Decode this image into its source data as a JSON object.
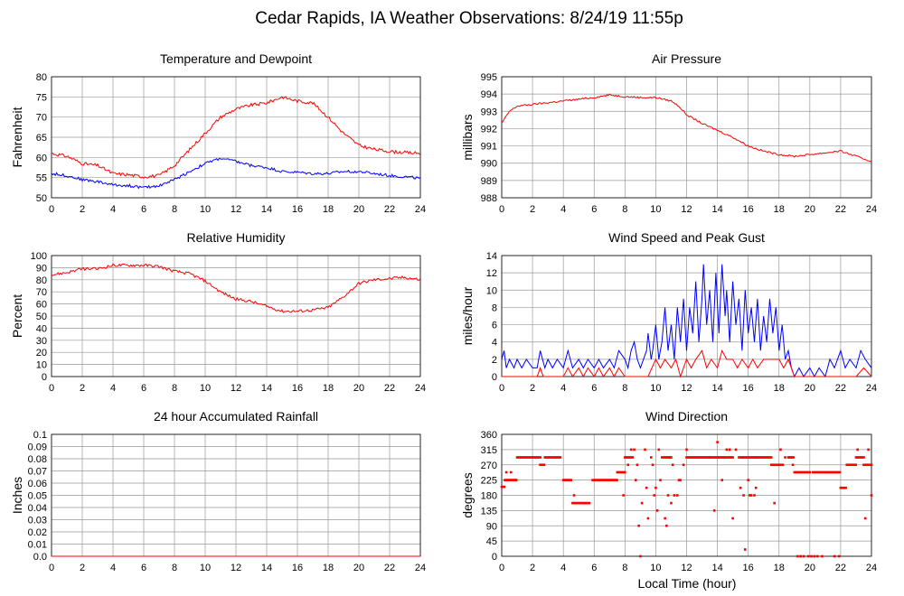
{
  "title": "Cedar Rapids, IA Weather Observations: 8/24/19 11:55p",
  "xlabel_shared": "Local Time (hour)",
  "colors": {
    "red": "#ff0000",
    "blue": "#0000ff",
    "grid": "#999999"
  },
  "chart_data": [
    {
      "id": "temp",
      "type": "line",
      "title": "Temperature and Dewpoint",
      "ylabel": "Fahrenheit",
      "xlim": [
        0,
        24
      ],
      "ylim": [
        50,
        80
      ],
      "grid": true,
      "xticks": [
        0,
        2,
        4,
        6,
        8,
        10,
        12,
        14,
        16,
        18,
        20,
        22,
        24
      ],
      "yticks": [
        50,
        55,
        60,
        65,
        70,
        75,
        80
      ],
      "series": [
        {
          "color": "red",
          "noise": 0.4,
          "x": [
            0,
            1,
            2,
            3,
            4,
            5,
            6,
            7,
            8,
            9,
            10,
            11,
            12,
            13,
            14,
            15,
            16,
            17,
            18,
            19,
            20,
            21,
            22,
            23,
            24
          ],
          "values": [
            61,
            60.3,
            58.5,
            58,
            56,
            55.7,
            55.2,
            55.5,
            58,
            62,
            66,
            70,
            72,
            73,
            73.5,
            75,
            74,
            73.5,
            70,
            66,
            63,
            62,
            61.5,
            61.2,
            61
          ]
        },
        {
          "color": "blue",
          "noise": 0.35,
          "x": [
            0,
            1,
            2,
            3,
            4,
            5,
            6,
            7,
            8,
            9,
            10,
            11,
            12,
            13,
            14,
            15,
            16,
            17,
            18,
            19,
            20,
            21,
            22,
            23,
            24
          ],
          "values": [
            56,
            55.5,
            54.5,
            54,
            53.2,
            53,
            52.5,
            53,
            54.5,
            56.5,
            58.5,
            59.8,
            59,
            58,
            57.5,
            56.5,
            56.3,
            56,
            56,
            56.5,
            56.5,
            56,
            55.5,
            55.2,
            54.8
          ]
        }
      ]
    },
    {
      "id": "pressure",
      "type": "line",
      "title": "Air Pressure",
      "ylabel": "millibars",
      "xlim": [
        0,
        24
      ],
      "ylim": [
        988,
        995
      ],
      "grid": true,
      "xticks": [
        0,
        2,
        4,
        6,
        8,
        10,
        12,
        14,
        16,
        18,
        20,
        22,
        24
      ],
      "yticks": [
        988,
        989,
        990,
        991,
        992,
        993,
        994,
        995
      ],
      "series": [
        {
          "color": "red",
          "noise": 0.05,
          "x": [
            0,
            0.5,
            1,
            2,
            3,
            4,
            5,
            6,
            7,
            8,
            9,
            10,
            11,
            11.5,
            12,
            13,
            14,
            15,
            16,
            17,
            18,
            19,
            20,
            21,
            22,
            23,
            24
          ],
          "values": [
            992.3,
            993,
            993.3,
            993.4,
            993.5,
            993.6,
            993.7,
            993.8,
            993.95,
            993.85,
            993.8,
            993.8,
            993.6,
            993.3,
            992.8,
            992.3,
            991.9,
            991.5,
            991,
            990.7,
            990.5,
            990.4,
            990.5,
            990.6,
            990.7,
            990.4,
            990.1
          ]
        }
      ]
    },
    {
      "id": "humidity",
      "type": "line",
      "title": "Relative Humidity",
      "ylabel": "Percent",
      "xlim": [
        0,
        24
      ],
      "ylim": [
        0,
        100
      ],
      "grid": true,
      "xticks": [
        0,
        2,
        4,
        6,
        8,
        10,
        12,
        14,
        16,
        18,
        20,
        22,
        24
      ],
      "yticks": [
        0,
        10,
        20,
        30,
        40,
        50,
        60,
        70,
        80,
        90,
        100
      ],
      "series": [
        {
          "color": "red",
          "noise": 1.2,
          "x": [
            0,
            1,
            2,
            3,
            4,
            5,
            6,
            7,
            8,
            9,
            10,
            11,
            12,
            13,
            14,
            15,
            16,
            17,
            18,
            19,
            20,
            21,
            22,
            23,
            24
          ],
          "values": [
            84,
            86,
            89,
            89,
            92,
            92,
            92,
            91,
            87,
            85,
            79,
            70,
            64,
            62,
            58,
            54,
            54,
            55,
            57,
            66,
            77,
            80,
            81,
            82,
            80
          ]
        }
      ]
    },
    {
      "id": "wind",
      "type": "line",
      "title": "Wind Speed and Peak Gust",
      "ylabel": "miles/hour",
      "xlim": [
        0,
        24
      ],
      "ylim": [
        0,
        14
      ],
      "grid": true,
      "xticks": [
        0,
        2,
        4,
        6,
        8,
        10,
        12,
        14,
        16,
        18,
        20,
        22,
        24
      ],
      "yticks": [
        0,
        2,
        4,
        6,
        8,
        10,
        12,
        14
      ],
      "series": [
        {
          "color": "blue",
          "x": [
            0,
            0.15,
            0.3,
            0.5,
            0.8,
            1,
            1.3,
            1.6,
            2,
            2.3,
            2.5,
            2.8,
            3,
            3.3,
            3.6,
            4,
            4.3,
            4.6,
            5,
            5.3,
            5.6,
            6,
            6.3,
            6.6,
            7,
            7.3,
            7.6,
            8,
            8.2,
            8.4,
            8.6,
            8.8,
            9,
            9.2,
            9.4,
            9.5,
            9.7,
            9.8,
            10,
            10.2,
            10.4,
            10.6,
            10.8,
            11,
            11.2,
            11.4,
            11.6,
            11.8,
            12,
            12.2,
            12.4,
            12.6,
            12.8,
            13,
            13.1,
            13.3,
            13.5,
            13.7,
            13.9,
            14.1,
            14.3,
            14.5,
            14.6,
            14.8,
            15,
            15.2,
            15.4,
            15.6,
            15.8,
            16,
            16.2,
            16.4,
            16.6,
            16.8,
            17,
            17.2,
            17.4,
            17.6,
            17.8,
            18,
            18.2,
            18.4,
            18.6,
            18.8,
            19,
            19.3,
            19.6,
            20,
            20.3,
            20.6,
            21,
            21.3,
            21.6,
            22,
            22.3,
            22.6,
            23,
            23.3,
            23.6,
            24
          ],
          "values": [
            2,
            3,
            1,
            2,
            1,
            2,
            1,
            2,
            1,
            1,
            3,
            1,
            2,
            1,
            2,
            1,
            3,
            1,
            2,
            1,
            2,
            1,
            2,
            1,
            2,
            1,
            3,
            2,
            1,
            3,
            4,
            2,
            1,
            2,
            3,
            5,
            2,
            3,
            6,
            2,
            4,
            8,
            3,
            6,
            2,
            8,
            4,
            9,
            3,
            8,
            5,
            11,
            4,
            9,
            13,
            6,
            10,
            4,
            12,
            5,
            13,
            7,
            10,
            4,
            11,
            6,
            9,
            3,
            10,
            5,
            8,
            4,
            9,
            3,
            7,
            4,
            9,
            5,
            8,
            3,
            6,
            2,
            3,
            1,
            0,
            1,
            0,
            1,
            0,
            1,
            0,
            2,
            1,
            3,
            1,
            2,
            1,
            3,
            2,
            1
          ]
        },
        {
          "color": "red",
          "x": [
            0,
            2.3,
            2.5,
            2.7,
            3,
            4,
            4.3,
            4.6,
            5,
            5.3,
            5.6,
            6,
            6.3,
            6.6,
            7,
            7.3,
            7.6,
            8,
            8.5,
            9,
            9.5,
            10,
            10.3,
            10.6,
            11,
            11.3,
            11.6,
            12,
            12.3,
            12.6,
            13,
            13.3,
            13.6,
            14,
            14.3,
            14.6,
            15,
            15.3,
            15.6,
            16,
            16.3,
            16.6,
            17,
            17.3,
            17.6,
            18,
            18.3,
            18.6,
            19,
            20,
            21,
            22,
            23,
            23.5,
            24
          ],
          "values": [
            0,
            0,
            1,
            0,
            0,
            0,
            1,
            0,
            1,
            0,
            1,
            0,
            1,
            0,
            1,
            0,
            1,
            0,
            0,
            0,
            0,
            2,
            1,
            2,
            1,
            2,
            0,
            2,
            1,
            2,
            3,
            1,
            2,
            1,
            3,
            2,
            2,
            1,
            2,
            1,
            2,
            1,
            2,
            2,
            2,
            2,
            1,
            2,
            0,
            0,
            0,
            0,
            0,
            1,
            0
          ]
        }
      ]
    },
    {
      "id": "rain",
      "type": "line",
      "title": "24 hour Accumulated Rainfall",
      "ylabel": "Inches",
      "xlim": [
        0,
        24
      ],
      "ylim": [
        0,
        0.1
      ],
      "grid": true,
      "xticks": [
        0,
        2,
        4,
        6,
        8,
        10,
        12,
        14,
        16,
        18,
        20,
        22,
        24
      ],
      "yticks": [
        0.0,
        0.01,
        0.02,
        0.03,
        0.04,
        0.05,
        0.06,
        0.07,
        0.08,
        0.09,
        0.1
      ],
      "series": [
        {
          "color": "red",
          "x": [
            0,
            24
          ],
          "values": [
            0,
            0
          ]
        }
      ]
    },
    {
      "id": "direction",
      "type": "scatter",
      "title": "Wind Direction",
      "ylabel": "degrees",
      "xlim": [
        0,
        24
      ],
      "ylim": [
        0,
        360
      ],
      "grid": true,
      "xticks": [
        0,
        2,
        4,
        6,
        8,
        10,
        12,
        14,
        16,
        18,
        20,
        22,
        24
      ],
      "yticks": [
        0,
        45,
        90,
        135,
        180,
        225,
        270,
        315,
        360
      ],
      "series": [
        {
          "color": "red",
          "runs": [
            [
              0,
              0.2,
              205
            ],
            [
              0.2,
              1,
              225
            ],
            [
              1,
              2.5,
              292
            ],
            [
              2.5,
              2.8,
              270
            ],
            [
              2.8,
              3.8,
              292
            ],
            [
              4,
              4.5,
              225
            ],
            [
              4.6,
              5.7,
              157
            ],
            [
              5.9,
              7.5,
              225
            ],
            [
              7.5,
              8,
              248
            ],
            [
              8,
              8.5,
              292
            ],
            [
              10.5,
              11,
              292
            ],
            [
              12,
              13.5,
              292
            ],
            [
              13.5,
              15,
              292
            ],
            [
              15.5,
              16.5,
              292
            ],
            [
              16.5,
              17.5,
              292
            ],
            [
              17.5,
              18.3,
              270
            ],
            [
              18.6,
              19,
              292
            ],
            [
              19,
              20,
              248
            ],
            [
              20.2,
              22,
              248
            ],
            [
              22,
              22.4,
              202
            ],
            [
              22.4,
              23,
              270
            ],
            [
              23,
              23.5,
              292
            ],
            [
              23.5,
              24,
              270
            ]
          ],
          "x": [
            0.3,
            0.6,
            0.9,
            4.7,
            7.9,
            8.2,
            8.4,
            8.6,
            8.7,
            8.8,
            8.9,
            9,
            9.1,
            9.3,
            9.4,
            9.5,
            9.7,
            9.8,
            9.9,
            10,
            10.1,
            10.2,
            10.3,
            10.4,
            10.6,
            10.7,
            10.8,
            10.9,
            11,
            11.1,
            11.2,
            11.4,
            11.5,
            11.6,
            11.8,
            12,
            13.8,
            14,
            14.3,
            14.6,
            14.8,
            15,
            15.2,
            15.4,
            15.5,
            15.6,
            15.7,
            15.8,
            16,
            16.1,
            16.2,
            16.4,
            16.5,
            17.7,
            18.1,
            18.4,
            18.9,
            19.2,
            19.4,
            19.6,
            19.9,
            20.1,
            20.3,
            20.5,
            20.8,
            21.6,
            21.9,
            23.1,
            23.6,
            23.8,
            24
          ],
          "values": [
            248,
            248,
            225,
            180,
            180,
            270,
            315,
            315,
            225,
            270,
            90,
            0,
            157,
            315,
            202,
            112,
            292,
            270,
            180,
            202,
            135,
            315,
            225,
            292,
            112,
            90,
            180,
            292,
            157,
            270,
            180,
            180,
            225,
            225,
            270,
            315,
            135,
            337,
            225,
            315,
            315,
            112,
            315,
            292,
            202,
            292,
            180,
            20,
            225,
            180,
            180,
            180,
            202,
            157,
            315,
            292,
            270,
            0,
            0,
            0,
            0,
            0,
            0,
            0,
            0,
            0,
            0,
            315,
            112,
            315,
            180
          ]
        }
      ]
    }
  ]
}
